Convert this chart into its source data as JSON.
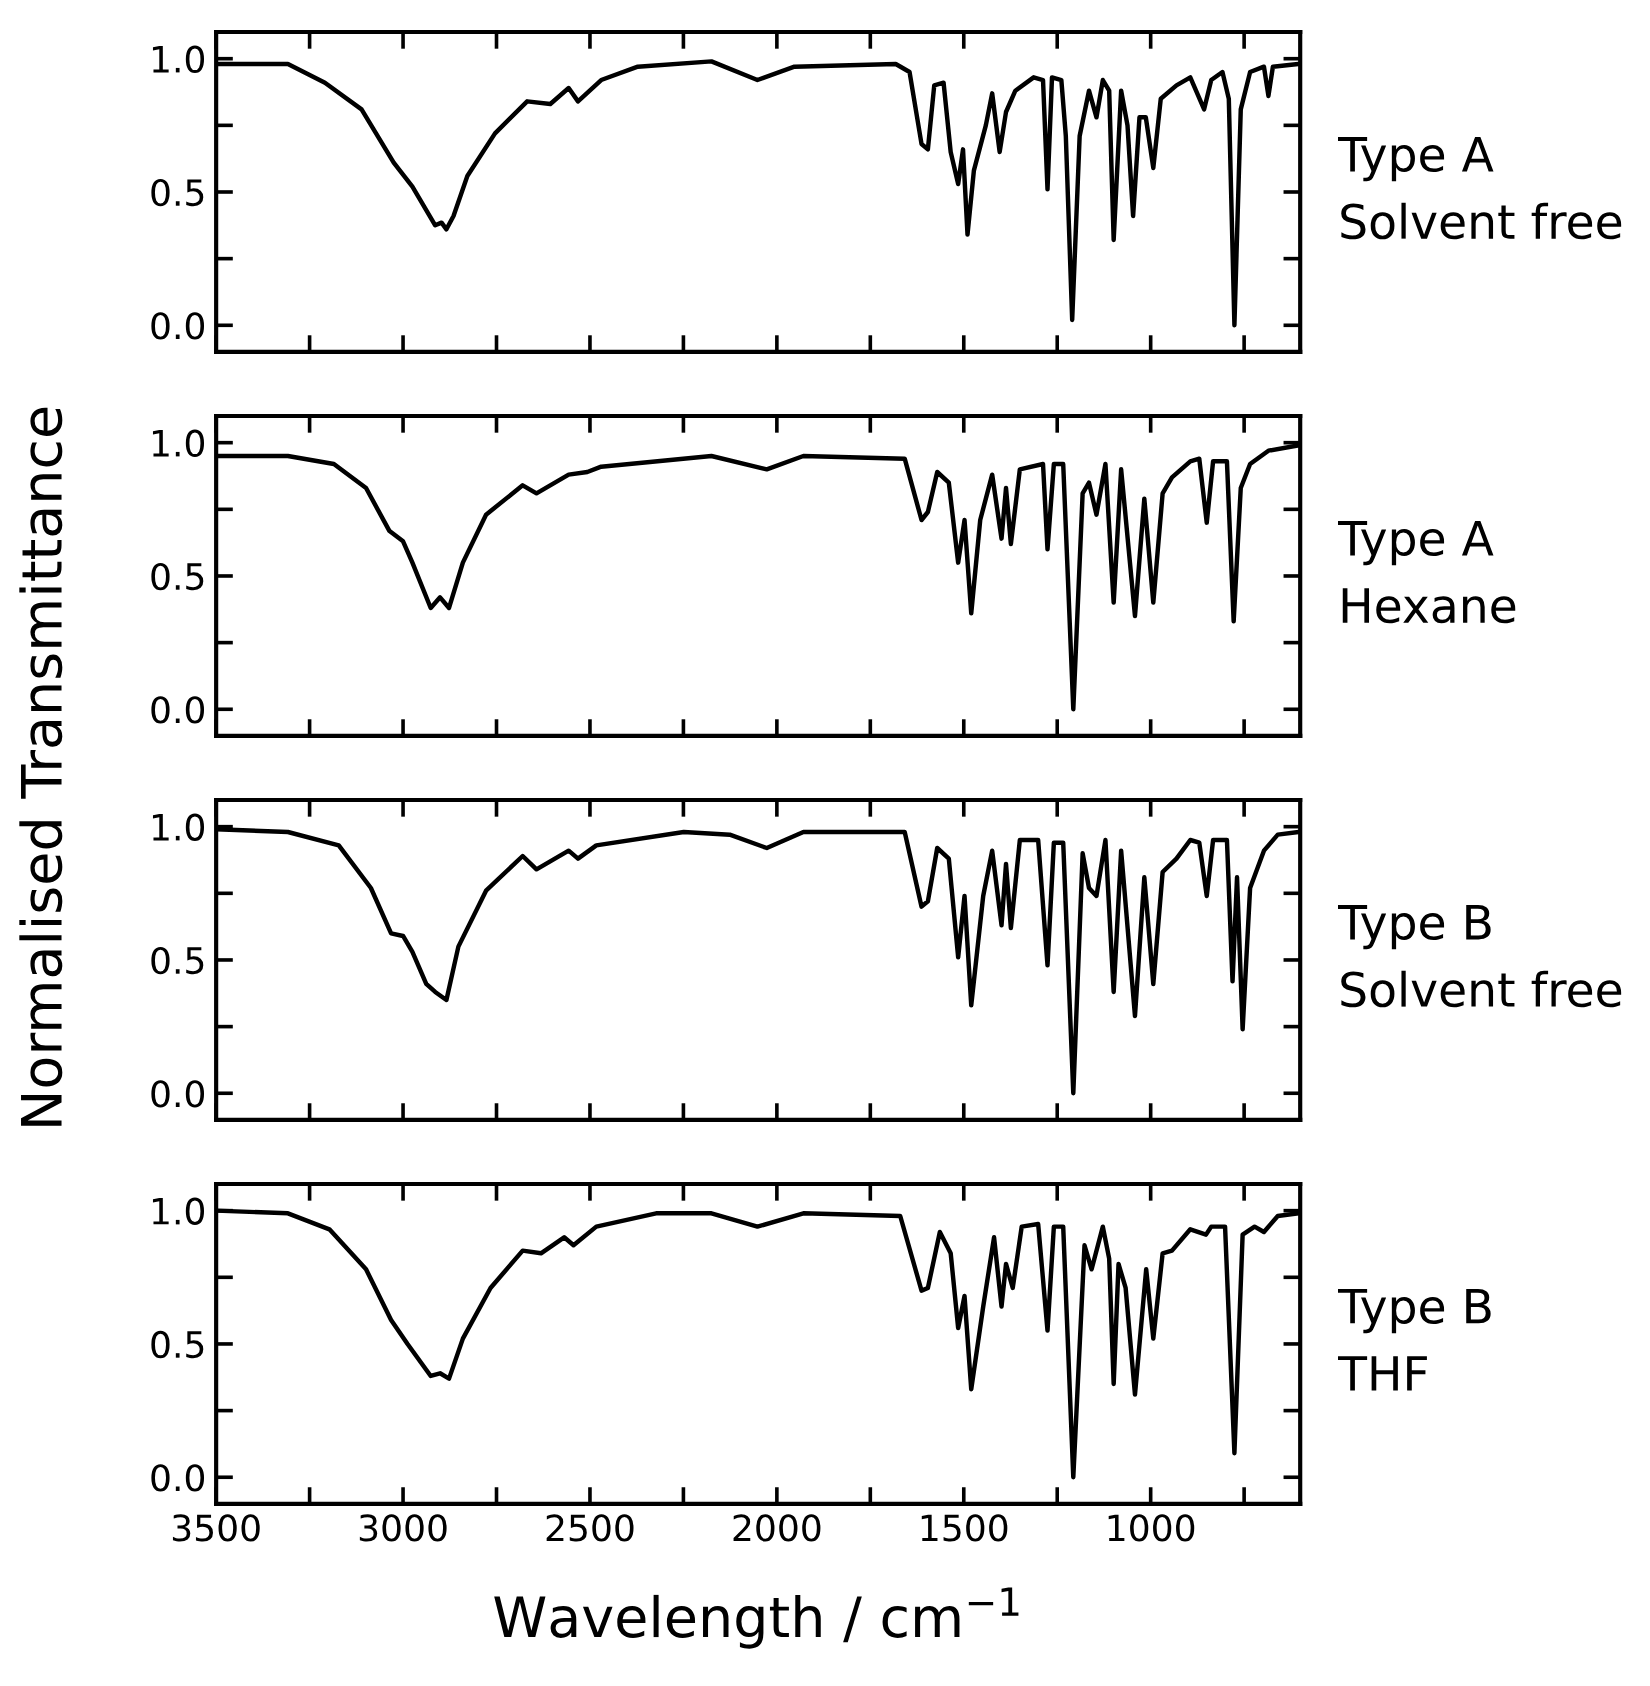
{
  "chart_data": [
    {
      "type": "line",
      "annotations": [
        "Type A\nSolvent free"
      ],
      "ylabel": "Normalised Transmittance",
      "tick_labels": "y",
      "grid": false,
      "legend": false,
      "xlim": [
        3500,
        600
      ],
      "ylim": [
        -0.1,
        1.1
      ],
      "xticks": [
        3500,
        {
          "value": 3250,
          "label": null
        },
        3000,
        {
          "value": 2750,
          "label": null
        },
        2500,
        {
          "value": 2250,
          "label": null
        },
        2000,
        {
          "value": 1750,
          "label": null
        },
        1500,
        {
          "value": 1250,
          "label": null
        },
        1000,
        {
          "value": 750,
          "label": null
        }
      ],
      "yticks": [
        {
          "value": 0,
          "label": "0.0"
        },
        {
          "value": 0.25,
          "label": null
        },
        {
          "value": 0.5,
          "label": "0.5"
        },
        {
          "value": 0.75,
          "label": null
        },
        {
          "value": 1,
          "label": "1.0"
        }
      ],
      "series": [
        {
          "color": "#000000",
          "x": [
            3500,
            3308,
            3209,
            3111,
            3025,
            2975,
            2914,
            2897,
            2884,
            2865,
            2828,
            2754,
            2668,
            2606,
            2557,
            2532,
            2470,
            2372,
            2175,
            2052,
            1953,
            1682,
            1645,
            1613,
            1596,
            1579,
            1554,
            1535,
            1515,
            1502,
            1490,
            1473,
            1441,
            1424,
            1404,
            1387,
            1362,
            1313,
            1288,
            1276,
            1264,
            1239,
            1227,
            1210,
            1190,
            1165,
            1145,
            1128,
            1111,
            1099,
            1079,
            1062,
            1047,
            1030,
            1013,
            993,
            973,
            931,
            894,
            857,
            838,
            808,
            791,
            776,
            759,
            734,
            697,
            685,
            673,
            605
          ],
          "values": [
            0.98,
            0.98,
            0.91,
            0.81,
            0.61,
            0.52,
            0.375,
            0.385,
            0.36,
            0.41,
            0.56,
            0.72,
            0.84,
            0.83,
            0.89,
            0.84,
            0.92,
            0.97,
            0.99,
            0.92,
            0.97,
            0.98,
            0.95,
            0.68,
            0.66,
            0.9,
            0.91,
            0.65,
            0.53,
            0.66,
            0.34,
            0.58,
            0.75,
            0.87,
            0.65,
            0.8,
            0.88,
            0.93,
            0.92,
            0.51,
            0.93,
            0.92,
            0.71,
            0.02,
            0.71,
            0.88,
            0.78,
            0.92,
            0.88,
            0.32,
            0.88,
            0.75,
            0.41,
            0.78,
            0.78,
            0.59,
            0.85,
            0.9,
            0.93,
            0.81,
            0.92,
            0.95,
            0.85,
            0.0,
            0.81,
            0.95,
            0.97,
            0.86,
            0.97,
            0.98
          ]
        }
      ]
    },
    {
      "type": "line",
      "annotations": [
        "Type A\nHexane"
      ],
      "tick_labels": "y",
      "grid": false,
      "legend": false,
      "xlim": [
        3500,
        600
      ],
      "ylim": [
        -0.1,
        1.1
      ],
      "xticks": [
        3500,
        {
          "value": 3250,
          "label": null
        },
        3000,
        {
          "value": 2750,
          "label": null
        },
        2500,
        {
          "value": 2250,
          "label": null
        },
        2000,
        {
          "value": 1750,
          "label": null
        },
        1500,
        {
          "value": 1250,
          "label": null
        },
        1000,
        {
          "value": 750,
          "label": null
        }
      ],
      "yticks": [
        {
          "value": 0,
          "label": "0.0"
        },
        {
          "value": 0.25,
          "label": null
        },
        {
          "value": 0.5,
          "label": "0.5"
        },
        {
          "value": 0.75,
          "label": null
        },
        {
          "value": 1,
          "label": "1.0"
        }
      ],
      "series": [
        {
          "color": "#000000",
          "x": [
            3500,
            3308,
            3185,
            3099,
            3037,
            3000,
            2975,
            2926,
            2901,
            2877,
            2840,
            2778,
            2680,
            2643,
            2557,
            2507,
            2470,
            2175,
            2027,
            1929,
            1658,
            1613,
            1596,
            1571,
            1540,
            1515,
            1498,
            1480,
            1456,
            1424,
            1399,
            1387,
            1374,
            1350,
            1288,
            1276,
            1259,
            1234,
            1207,
            1182,
            1165,
            1145,
            1121,
            1099,
            1079,
            1042,
            1017,
            993,
            968,
            943,
            894,
            870,
            850,
            833,
            796,
            778,
            759,
            734,
            685,
            605
          ],
          "values": [
            0.95,
            0.95,
            0.92,
            0.83,
            0.67,
            0.63,
            0.55,
            0.38,
            0.42,
            0.38,
            0.55,
            0.73,
            0.84,
            0.81,
            0.88,
            0.89,
            0.91,
            0.95,
            0.9,
            0.95,
            0.94,
            0.71,
            0.74,
            0.89,
            0.85,
            0.55,
            0.71,
            0.36,
            0.71,
            0.88,
            0.64,
            0.83,
            0.62,
            0.9,
            0.92,
            0.6,
            0.92,
            0.92,
            0.0,
            0.81,
            0.85,
            0.73,
            0.92,
            0.4,
            0.9,
            0.35,
            0.79,
            0.4,
            0.81,
            0.87,
            0.93,
            0.94,
            0.7,
            0.93,
            0.93,
            0.33,
            0.83,
            0.92,
            0.97,
            0.99
          ]
        }
      ]
    },
    {
      "type": "line",
      "annotations": [
        "Type B\nSolvent free"
      ],
      "tick_labels": "y",
      "grid": false,
      "legend": false,
      "xlim": [
        3500,
        600
      ],
      "ylim": [
        -0.1,
        1.1
      ],
      "xticks": [
        3500,
        {
          "value": 3250,
          "label": null
        },
        3000,
        {
          "value": 2750,
          "label": null
        },
        2500,
        {
          "value": 2250,
          "label": null
        },
        2000,
        {
          "value": 1750,
          "label": null
        },
        1500,
        {
          "value": 1250,
          "label": null
        },
        1000,
        {
          "value": 750,
          "label": null
        }
      ],
      "yticks": [
        {
          "value": 0,
          "label": "0.0"
        },
        {
          "value": 0.25,
          "label": null
        },
        {
          "value": 0.5,
          "label": "0.5"
        },
        {
          "value": 0.75,
          "label": null
        },
        {
          "value": 1,
          "label": "1.0"
        }
      ],
      "series": [
        {
          "color": "#000000",
          "x": [
            3500,
            3308,
            3172,
            3086,
            3032,
            3000,
            2975,
            2938,
            2914,
            2884,
            2852,
            2778,
            2680,
            2643,
            2557,
            2532,
            2483,
            2249,
            2126,
            2027,
            1929,
            1658,
            1613,
            1596,
            1571,
            1540,
            1515,
            1498,
            1480,
            1448,
            1424,
            1399,
            1387,
            1374,
            1350,
            1301,
            1276,
            1259,
            1234,
            1207,
            1182,
            1165,
            1145,
            1121,
            1099,
            1079,
            1042,
            1017,
            993,
            968,
            931,
            894,
            870,
            850,
            833,
            796,
            781,
            769,
            754,
            734,
            697,
            660,
            605
          ],
          "values": [
            0.99,
            0.98,
            0.93,
            0.77,
            0.6,
            0.59,
            0.53,
            0.41,
            0.38,
            0.35,
            0.55,
            0.76,
            0.89,
            0.84,
            0.91,
            0.88,
            0.93,
            0.98,
            0.97,
            0.92,
            0.98,
            0.98,
            0.7,
            0.72,
            0.92,
            0.88,
            0.51,
            0.74,
            0.33,
            0.74,
            0.91,
            0.63,
            0.86,
            0.62,
            0.95,
            0.95,
            0.48,
            0.94,
            0.94,
            0.0,
            0.9,
            0.77,
            0.74,
            0.95,
            0.38,
            0.91,
            0.29,
            0.81,
            0.41,
            0.83,
            0.88,
            0.95,
            0.94,
            0.74,
            0.95,
            0.95,
            0.42,
            0.81,
            0.24,
            0.77,
            0.91,
            0.97,
            0.98
          ]
        }
      ]
    },
    {
      "type": "line",
      "annotations": [
        "Type B\nTHF"
      ],
      "xlabel": "Wavelength / cm$^{−1}$",
      "grid": false,
      "legend": false,
      "xlim": [
        3500,
        600
      ],
      "ylim": [
        -0.1,
        1.1
      ],
      "xticks": [
        3500,
        {
          "value": 3250,
          "label": null
        },
        3000,
        {
          "value": 2750,
          "label": null
        },
        2500,
        {
          "value": 2250,
          "label": null
        },
        2000,
        {
          "value": 1750,
          "label": null
        },
        1500,
        {
          "value": 1250,
          "label": null
        },
        1000,
        {
          "value": 750,
          "label": null
        }
      ],
      "yticks": [
        {
          "value": 0,
          "label": "0.0"
        },
        {
          "value": 0.25,
          "label": null
        },
        {
          "value": 0.5,
          "label": "0.5"
        },
        {
          "value": 0.75,
          "label": null
        },
        {
          "value": 1,
          "label": "1.0"
        }
      ],
      "series": [
        {
          "color": "#000000",
          "x": [
            3500,
            3308,
            3197,
            3099,
            3032,
            2988,
            2926,
            2901,
            2877,
            2840,
            2766,
            2680,
            2631,
            2569,
            2544,
            2483,
            2323,
            2175,
            2052,
            1929,
            1670,
            1613,
            1596,
            1564,
            1535,
            1515,
            1498,
            1480,
            1448,
            1419,
            1399,
            1387,
            1369,
            1345,
            1301,
            1276,
            1259,
            1234,
            1207,
            1177,
            1158,
            1128,
            1111,
            1099,
            1086,
            1067,
            1042,
            1012,
            993,
            968,
            943,
            894,
            852,
            838,
            801,
            776,
            754,
            722,
            697,
            660,
            605
          ],
          "values": [
            1.0,
            0.99,
            0.93,
            0.78,
            0.59,
            0.5,
            0.38,
            0.39,
            0.37,
            0.52,
            0.71,
            0.85,
            0.84,
            0.9,
            0.87,
            0.94,
            0.99,
            0.99,
            0.94,
            0.99,
            0.98,
            0.7,
            0.71,
            0.92,
            0.84,
            0.56,
            0.68,
            0.33,
            0.64,
            0.9,
            0.64,
            0.8,
            0.71,
            0.94,
            0.95,
            0.55,
            0.94,
            0.94,
            0.0,
            0.87,
            0.78,
            0.94,
            0.82,
            0.35,
            0.8,
            0.71,
            0.31,
            0.78,
            0.52,
            0.84,
            0.85,
            0.93,
            0.91,
            0.94,
            0.94,
            0.09,
            0.91,
            0.94,
            0.92,
            0.98,
            0.99
          ]
        }
      ]
    }
  ]
}
